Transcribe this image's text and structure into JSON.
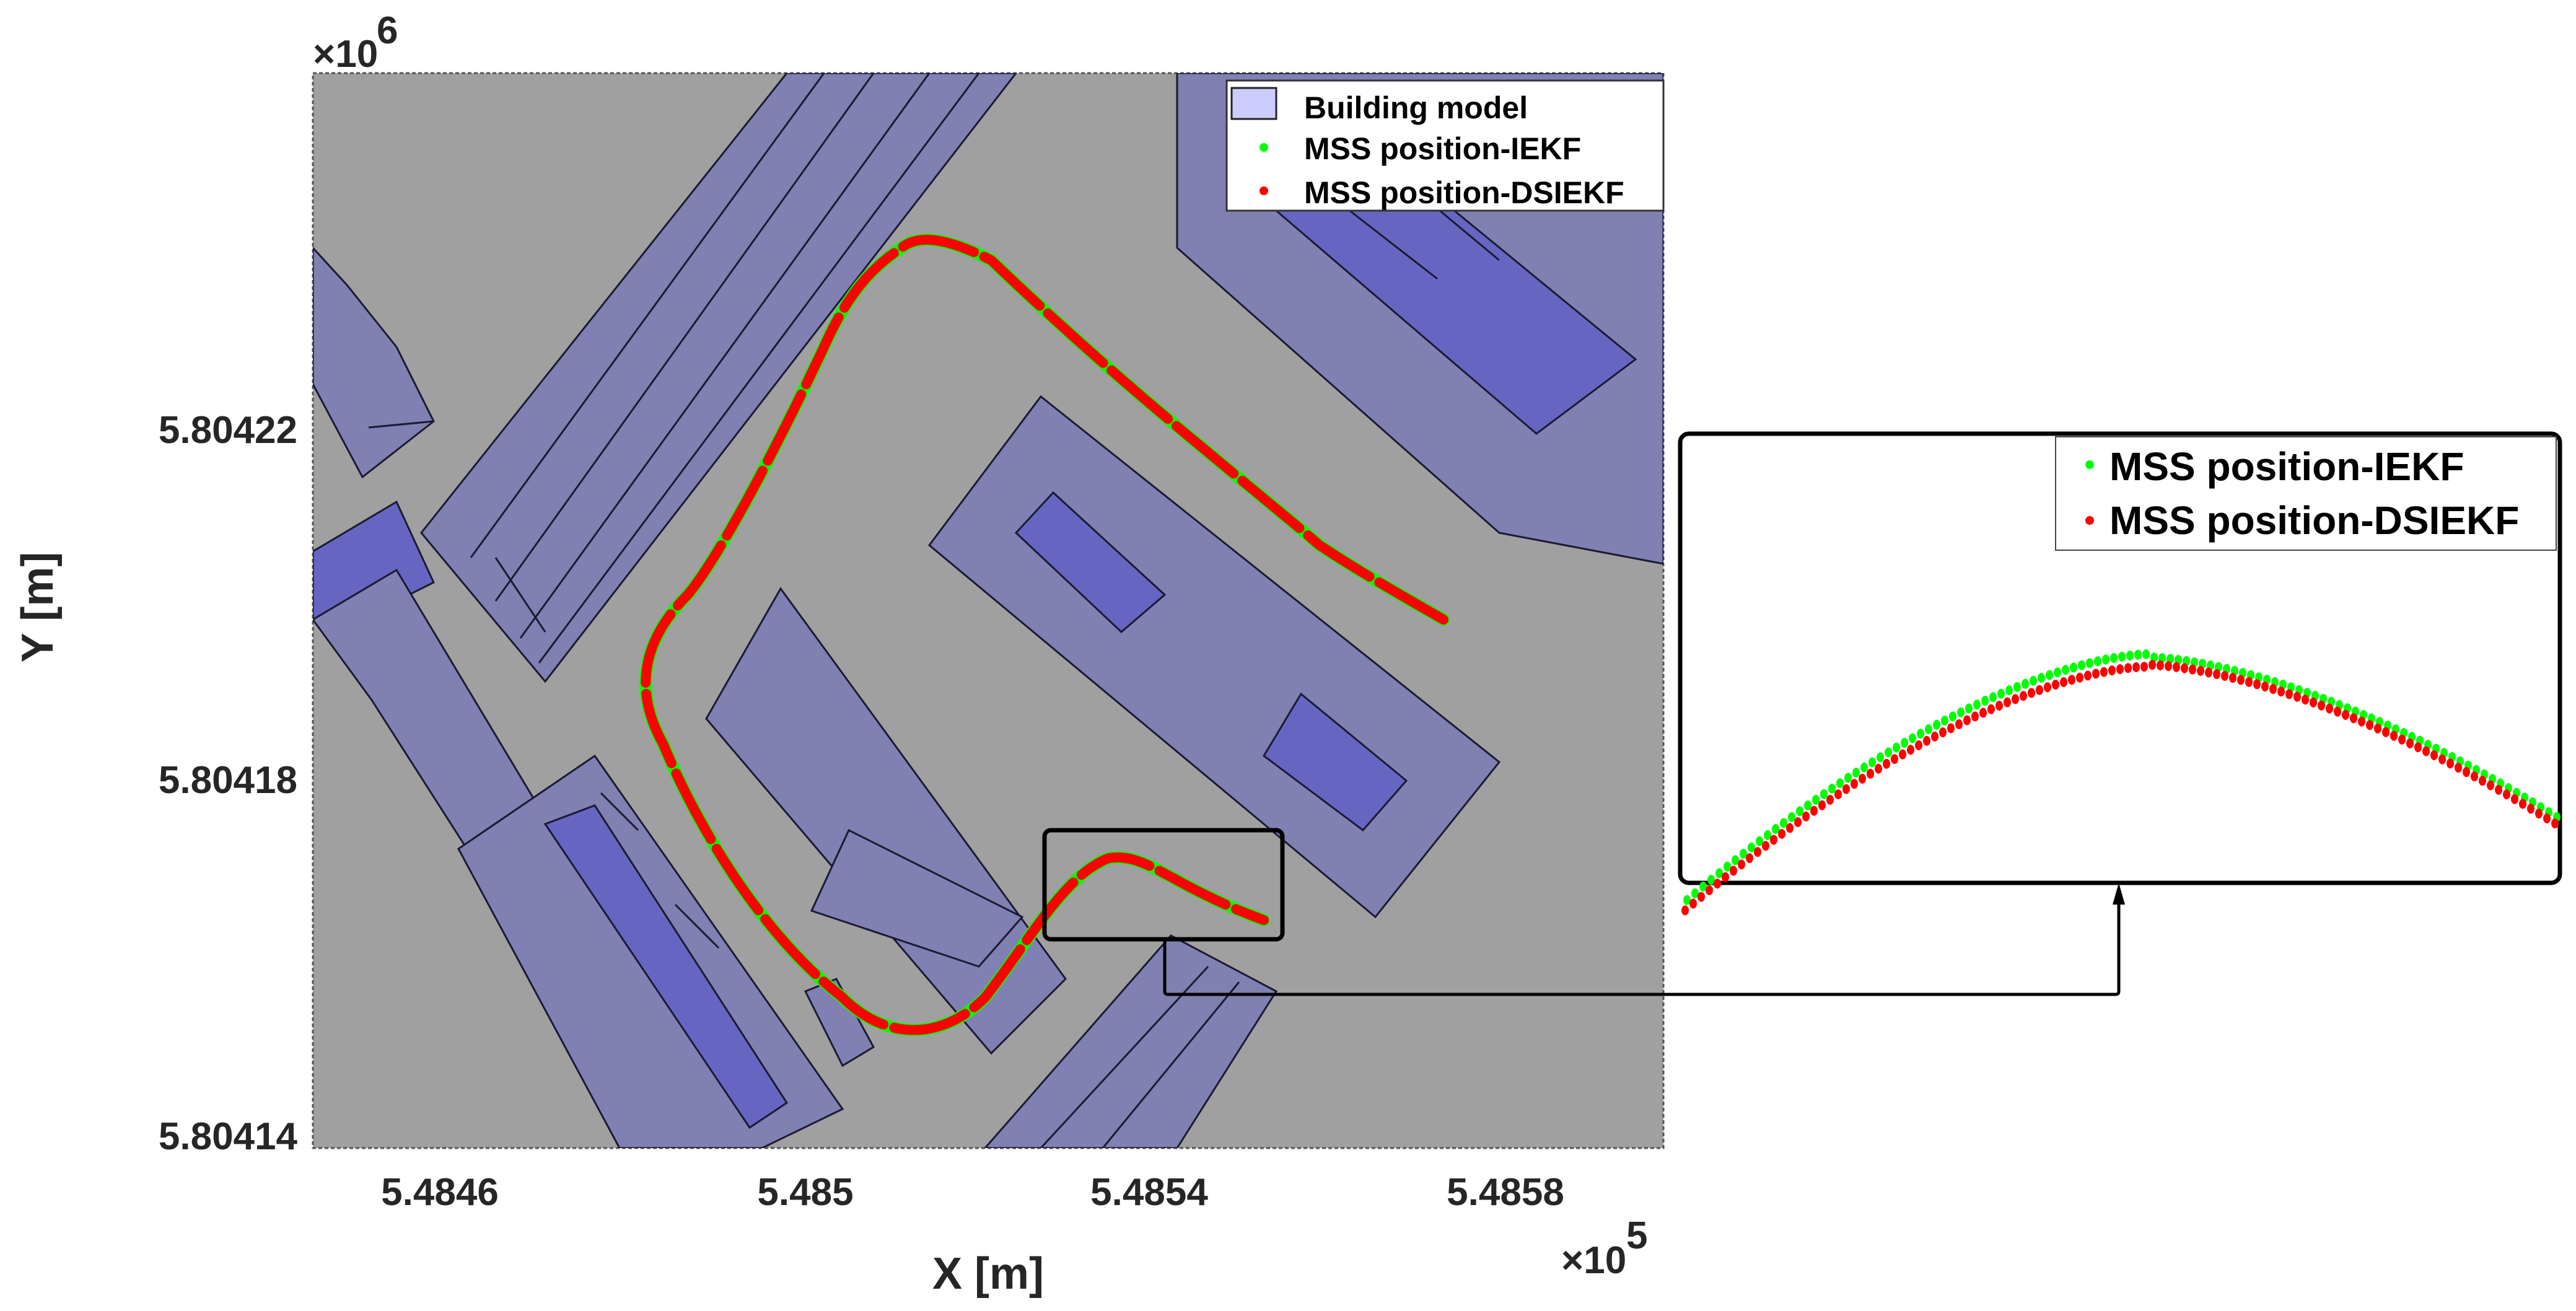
{
  "chart_data": {
    "type": "scatter",
    "title": "",
    "xlabel": "X [m]",
    "ylabel": "Y [m]",
    "x_exponent_label": "×10",
    "x_exponent": "5",
    "y_exponent_label": "×10",
    "y_exponent": "6",
    "x_ticks": [
      "5.4846",
      "5.485",
      "5.4854",
      "5.4858"
    ],
    "y_ticks": [
      "5.80422",
      "5.80418",
      "5.80414"
    ],
    "xlim": [
      5.48446,
      5.48597
    ],
    "ylim": [
      5.80414,
      5.80426
    ],
    "grid": false,
    "legend_position": "top-right inside",
    "background_color": "#a0a0a0",
    "legend": [
      {
        "label": "Building model",
        "marker": "patch",
        "color": "#ccccff"
      },
      {
        "label": "MSS position-IEKF",
        "marker": "dot",
        "color": "#00ff00"
      },
      {
        "label": "MSS position-DSIEKF",
        "marker": "dot",
        "color": "#ff0000"
      }
    ],
    "series": [
      {
        "name": "MSS position-IEKF",
        "color": "#00ff00",
        "x": [
          5.48576,
          5.4857,
          5.48555,
          5.4854,
          5.48525,
          5.48518,
          5.48512,
          5.48508,
          5.48501,
          5.48496,
          5.48491,
          5.48486,
          5.48483,
          5.48484,
          5.48488,
          5.48494,
          5.485,
          5.48506,
          5.48513,
          5.48522,
          5.4853,
          5.48536,
          5.48541,
          5.48546,
          5.48552
        ],
        "y": [
          5.804198,
          5.804201,
          5.804211,
          5.804222,
          5.804233,
          5.804238,
          5.80424,
          5.804237,
          5.804227,
          5.804213,
          5.804198,
          5.804192,
          5.804185,
          5.804178,
          5.804168,
          5.80416,
          5.804153,
          5.804148,
          5.804145,
          5.80415,
          5.80416,
          5.804167,
          5.804171,
          5.80417,
          5.804163
        ]
      },
      {
        "name": "MSS position-DSIEKF",
        "color": "#ff0000",
        "x": [
          5.48576,
          5.4857,
          5.48555,
          5.4854,
          5.48525,
          5.48518,
          5.48512,
          5.48508,
          5.48501,
          5.48496,
          5.48491,
          5.48486,
          5.48483,
          5.48484,
          5.48488,
          5.48494,
          5.485,
          5.48506,
          5.48513,
          5.48522,
          5.4853,
          5.48536,
          5.48541,
          5.48546,
          5.48552
        ],
        "y": [
          5.804198,
          5.804201,
          5.804211,
          5.804222,
          5.804233,
          5.804238,
          5.80424,
          5.804237,
          5.804227,
          5.804213,
          5.804198,
          5.804192,
          5.804185,
          5.804178,
          5.804168,
          5.80416,
          5.804153,
          5.804148,
          5.804145,
          5.80415,
          5.80416,
          5.804167,
          5.804171,
          5.80417,
          5.804163
        ]
      }
    ],
    "inset": {
      "description": "Zoomed detail of trajectory peak near X≈5.4854e5",
      "legend": [
        {
          "label": "MSS position-IEKF",
          "color": "#00ff00"
        },
        {
          "label": "MSS position-DSIEKF",
          "color": "#ff0000"
        }
      ]
    }
  }
}
